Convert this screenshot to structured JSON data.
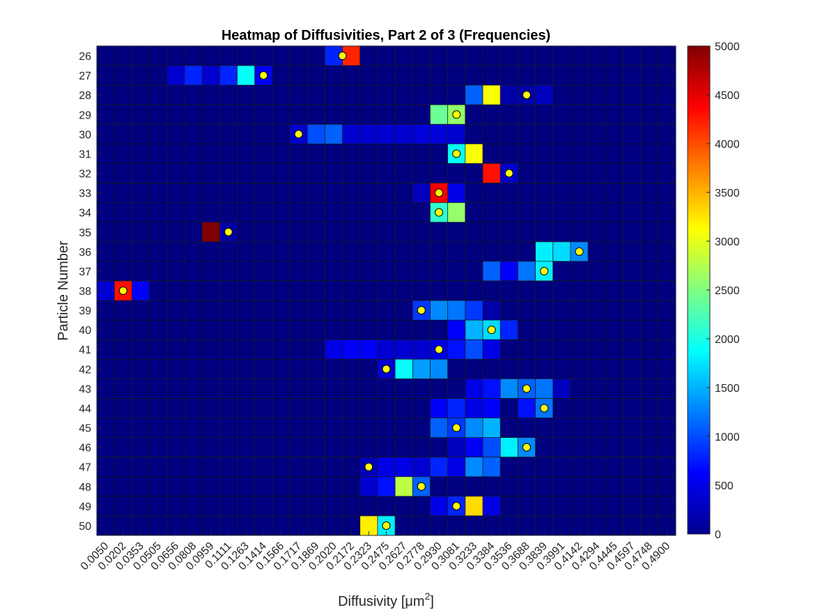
{
  "chart_data": {
    "type": "heatmap",
    "title": "Heatmap of Diffusivities, Part 2 of 3 (Frequencies)",
    "xlabel": "Diffusivity [μm",
    "xlabel_sup": "2",
    "xlabel_close": "]",
    "ylabel": "Particle Number",
    "x_ticks": [
      "0.0050",
      "0.0202",
      "0.0353",
      "0.0505",
      "0.0656",
      "0.0808",
      "0.0959",
      "0.1111",
      "0.1263",
      "0.1414",
      "0.1566",
      "0.1717",
      "0.1869",
      "0.2020",
      "0.2172",
      "0.2323",
      "0.2475",
      "0.2627",
      "0.2778",
      "0.2930",
      "0.3081",
      "0.3233",
      "0.3384",
      "0.3536",
      "0.3688",
      "0.3839",
      "0.3991",
      "0.4142",
      "0.4294",
      "0.4445",
      "0.4597",
      "0.4748",
      "0.4900"
    ],
    "y_ticks": [
      "26",
      "27",
      "28",
      "29",
      "30",
      "31",
      "32",
      "33",
      "34",
      "35",
      "36",
      "37",
      "38",
      "39",
      "40",
      "41",
      "42",
      "43",
      "44",
      "45",
      "46",
      "47",
      "48",
      "49",
      "50"
    ],
    "colorbar": {
      "min": 0,
      "max": 5000,
      "ticks": [
        0,
        500,
        1000,
        1500,
        2000,
        2500,
        3000,
        3500,
        4000,
        4500,
        5000
      ],
      "colormap": "jet"
    },
    "cells": [
      {
        "row": "26",
        "col": 13,
        "value": 800
      },
      {
        "row": "26",
        "col": 14,
        "value": 4200
      },
      {
        "row": "27",
        "col": 4,
        "value": 400
      },
      {
        "row": "27",
        "col": 5,
        "value": 800
      },
      {
        "row": "27",
        "col": 6,
        "value": 400
      },
      {
        "row": "27",
        "col": 7,
        "value": 800
      },
      {
        "row": "27",
        "col": 8,
        "value": 1900
      },
      {
        "row": "27",
        "col": 9,
        "value": 600
      },
      {
        "row": "28",
        "col": 21,
        "value": 1100
      },
      {
        "row": "28",
        "col": 22,
        "value": 3100
      },
      {
        "row": "28",
        "col": 23,
        "value": 200
      },
      {
        "row": "28",
        "col": 24,
        "value": 200
      },
      {
        "row": "28",
        "col": 25,
        "value": 300
      },
      {
        "row": "29",
        "col": 19,
        "value": 2400
      },
      {
        "row": "29",
        "col": 20,
        "value": 2600
      },
      {
        "row": "30",
        "col": 11,
        "value": 400
      },
      {
        "row": "30",
        "col": 12,
        "value": 1000
      },
      {
        "row": "30",
        "col": 13,
        "value": 1100
      },
      {
        "row": "30",
        "col": 14,
        "value": 400
      },
      {
        "row": "30",
        "col": 15,
        "value": 400
      },
      {
        "row": "30",
        "col": 16,
        "value": 400
      },
      {
        "row": "30",
        "col": 17,
        "value": 400
      },
      {
        "row": "30",
        "col": 18,
        "value": 450
      },
      {
        "row": "30",
        "col": 19,
        "value": 450
      },
      {
        "row": "30",
        "col": 20,
        "value": 400
      },
      {
        "row": "31",
        "col": 20,
        "value": 1900
      },
      {
        "row": "31",
        "col": 21,
        "value": 3100
      },
      {
        "row": "32",
        "col": 22,
        "value": 4300
      },
      {
        "row": "32",
        "col": 23,
        "value": 400
      },
      {
        "row": "33",
        "col": 18,
        "value": 300
      },
      {
        "row": "33",
        "col": 19,
        "value": 4400
      },
      {
        "row": "33",
        "col": 20,
        "value": 500
      },
      {
        "row": "34",
        "col": 19,
        "value": 2100
      },
      {
        "row": "34",
        "col": 20,
        "value": 2600
      },
      {
        "row": "35",
        "col": 6,
        "value": 5000
      },
      {
        "row": "35",
        "col": 7,
        "value": 200
      },
      {
        "row": "36",
        "col": 25,
        "value": 1800
      },
      {
        "row": "36",
        "col": 26,
        "value": 1700
      },
      {
        "row": "36",
        "col": 27,
        "value": 1300
      },
      {
        "row": "37",
        "col": 22,
        "value": 1100
      },
      {
        "row": "37",
        "col": 23,
        "value": 600
      },
      {
        "row": "37",
        "col": 24,
        "value": 1200
      },
      {
        "row": "37",
        "col": 25,
        "value": 1800
      },
      {
        "row": "38",
        "col": 0,
        "value": 400
      },
      {
        "row": "38",
        "col": 1,
        "value": 4300
      },
      {
        "row": "38",
        "col": 2,
        "value": 600
      },
      {
        "row": "39",
        "col": 18,
        "value": 900
      },
      {
        "row": "39",
        "col": 19,
        "value": 1300
      },
      {
        "row": "39",
        "col": 20,
        "value": 1200
      },
      {
        "row": "39",
        "col": 21,
        "value": 900
      },
      {
        "row": "39",
        "col": 22,
        "value": 200
      },
      {
        "row": "40",
        "col": 20,
        "value": 600
      },
      {
        "row": "40",
        "col": 21,
        "value": 1500
      },
      {
        "row": "40",
        "col": 22,
        "value": 1700
      },
      {
        "row": "40",
        "col": 23,
        "value": 800
      },
      {
        "row": "41",
        "col": 13,
        "value": 500
      },
      {
        "row": "41",
        "col": 14,
        "value": 600
      },
      {
        "row": "41",
        "col": 15,
        "value": 600
      },
      {
        "row": "41",
        "col": 16,
        "value": 400
      },
      {
        "row": "41",
        "col": 17,
        "value": 400
      },
      {
        "row": "41",
        "col": 18,
        "value": 400
      },
      {
        "row": "41",
        "col": 19,
        "value": 500
      },
      {
        "row": "41",
        "col": 20,
        "value": 700
      },
      {
        "row": "41",
        "col": 21,
        "value": 1000
      },
      {
        "row": "41",
        "col": 22,
        "value": 500
      },
      {
        "row": "42",
        "col": 16,
        "value": 400
      },
      {
        "row": "42",
        "col": 17,
        "value": 1900
      },
      {
        "row": "42",
        "col": 18,
        "value": 1400
      },
      {
        "row": "42",
        "col": 19,
        "value": 1300
      },
      {
        "row": "43",
        "col": 21,
        "value": 500
      },
      {
        "row": "43",
        "col": 22,
        "value": 700
      },
      {
        "row": "43",
        "col": 23,
        "value": 1300
      },
      {
        "row": "43",
        "col": 24,
        "value": 1100
      },
      {
        "row": "43",
        "col": 25,
        "value": 1200
      },
      {
        "row": "43",
        "col": 26,
        "value": 300
      },
      {
        "row": "44",
        "col": 19,
        "value": 600
      },
      {
        "row": "44",
        "col": 20,
        "value": 800
      },
      {
        "row": "44",
        "col": 21,
        "value": 500
      },
      {
        "row": "44",
        "col": 22,
        "value": 600
      },
      {
        "row": "44",
        "col": 24,
        "value": 700
      },
      {
        "row": "44",
        "col": 25,
        "value": 1200
      },
      {
        "row": "45",
        "col": 19,
        "value": 1100
      },
      {
        "row": "45",
        "col": 20,
        "value": 900
      },
      {
        "row": "45",
        "col": 21,
        "value": 1300
      },
      {
        "row": "45",
        "col": 22,
        "value": 1500
      },
      {
        "row": "46",
        "col": 20,
        "value": 300
      },
      {
        "row": "46",
        "col": 21,
        "value": 600
      },
      {
        "row": "46",
        "col": 22,
        "value": 1000
      },
      {
        "row": "46",
        "col": 23,
        "value": 1800
      },
      {
        "row": "46",
        "col": 24,
        "value": 1300
      },
      {
        "row": "47",
        "col": 15,
        "value": 300
      },
      {
        "row": "47",
        "col": 16,
        "value": 500
      },
      {
        "row": "47",
        "col": 17,
        "value": 500
      },
      {
        "row": "47",
        "col": 18,
        "value": 400
      },
      {
        "row": "47",
        "col": 19,
        "value": 800
      },
      {
        "row": "47",
        "col": 20,
        "value": 500
      },
      {
        "row": "47",
        "col": 21,
        "value": 1300
      },
      {
        "row": "47",
        "col": 22,
        "value": 1100
      },
      {
        "row": "48",
        "col": 15,
        "value": 400
      },
      {
        "row": "48",
        "col": 16,
        "value": 700
      },
      {
        "row": "48",
        "col": 17,
        "value": 2800
      },
      {
        "row": "48",
        "col": 18,
        "value": 1100
      },
      {
        "row": "49",
        "col": 19,
        "value": 500
      },
      {
        "row": "49",
        "col": 20,
        "value": 800
      },
      {
        "row": "49",
        "col": 21,
        "value": 3300
      },
      {
        "row": "49",
        "col": 22,
        "value": 500
      },
      {
        "row": "50",
        "col": 15,
        "value": 3200
      },
      {
        "row": "50",
        "col": 16,
        "value": 1800
      }
    ],
    "markers": [
      {
        "row": "26",
        "x": 13.5
      },
      {
        "row": "27",
        "x": 9.0
      },
      {
        "row": "28",
        "x": 24.0
      },
      {
        "row": "29",
        "x": 20.0
      },
      {
        "row": "30",
        "x": 11.0
      },
      {
        "row": "31",
        "x": 20.0
      },
      {
        "row": "32",
        "x": 23.0
      },
      {
        "row": "33",
        "x": 19.0
      },
      {
        "row": "34",
        "x": 19.0
      },
      {
        "row": "35",
        "x": 7.0
      },
      {
        "row": "36",
        "x": 27.0
      },
      {
        "row": "37",
        "x": 25.0
      },
      {
        "row": "38",
        "x": 1.0
      },
      {
        "row": "39",
        "x": 18.0
      },
      {
        "row": "40",
        "x": 22.0
      },
      {
        "row": "41",
        "x": 19.0
      },
      {
        "row": "42",
        "x": 16.0
      },
      {
        "row": "43",
        "x": 24.0
      },
      {
        "row": "44",
        "x": 25.0
      },
      {
        "row": "45",
        "x": 20.0
      },
      {
        "row": "46",
        "x": 24.0
      },
      {
        "row": "47",
        "x": 15.0
      },
      {
        "row": "48",
        "x": 18.0
      },
      {
        "row": "49",
        "x": 20.0
      },
      {
        "row": "50",
        "x": 16.0
      }
    ],
    "marker_color": "#ffff00",
    "background_value": 0,
    "grid": true
  }
}
